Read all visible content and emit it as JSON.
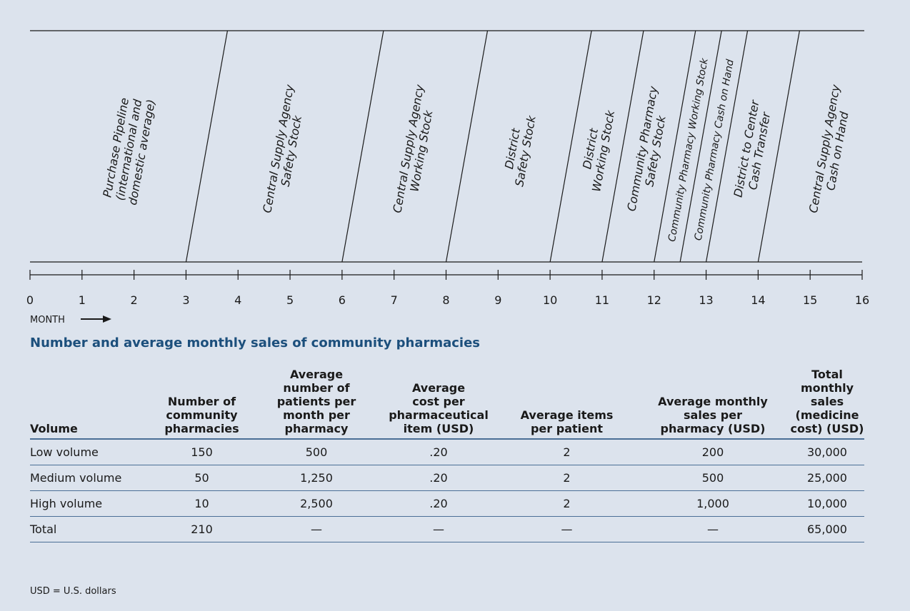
{
  "timeline": {
    "ticks": [
      0,
      1,
      2,
      3,
      4,
      5,
      6,
      7,
      8,
      9,
      10,
      11,
      12,
      13,
      14,
      15,
      16
    ],
    "axis_label": "MONTH",
    "segments": [
      {
        "from": 0,
        "to": 3,
        "lines": [
          "Purchase Pipeline",
          "(international and",
          "domestic average)"
        ]
      },
      {
        "from": 3,
        "to": 6,
        "lines": [
          "Central Supply Agency",
          "Safety Stock"
        ]
      },
      {
        "from": 6,
        "to": 8,
        "lines": [
          "Central Supply Agency",
          "Working Stock"
        ]
      },
      {
        "from": 8,
        "to": 10,
        "lines": [
          "District",
          "Safety Stock"
        ]
      },
      {
        "from": 10,
        "to": 11,
        "lines": [
          "District",
          "Working Stock"
        ]
      },
      {
        "from": 11,
        "to": 12,
        "lines": [
          "Community Pharmacy",
          "Safety Stock"
        ]
      },
      {
        "from": 12,
        "to": 12.5,
        "lines": [
          "Community Pharmacy Working Stock"
        ]
      },
      {
        "from": 12.5,
        "to": 13,
        "lines": [
          "Community Pharmacy Cash on Hand"
        ]
      },
      {
        "from": 13,
        "to": 14,
        "lines": [
          "District to Center",
          "Cash Transfer"
        ]
      },
      {
        "from": 14,
        "to": 16,
        "lines": [
          "Central Supply Agency",
          "Cash on Hand"
        ]
      }
    ]
  },
  "table": {
    "title": "Number and average monthly sales of community pharmacies",
    "columns": [
      [
        "Volume"
      ],
      [
        "Number of",
        "community",
        "pharmacies"
      ],
      [
        "Average",
        "number of",
        "patients per",
        "month per",
        "pharmacy"
      ],
      [
        "Average",
        "cost per",
        "pharmaceutical",
        "item (USD)"
      ],
      [
        "Average items",
        "per patient"
      ],
      [
        "Average monthly",
        "sales per",
        "pharmacy (USD)"
      ],
      [
        "Total monthly",
        "sales (medicine",
        "cost) (USD)"
      ]
    ],
    "rows": [
      [
        "Low volume",
        "150",
        "500",
        ".20",
        "2",
        "200",
        "30,000"
      ],
      [
        "Medium volume",
        "50",
        "1,250",
        ".20",
        "2",
        "500",
        "25,000"
      ],
      [
        "High volume",
        "10",
        "2,500",
        ".20",
        "2",
        "1,000",
        "10,000"
      ],
      [
        "Total",
        "210",
        "—",
        "—",
        "—",
        "—",
        "65,000"
      ]
    ],
    "footnote": "USD = U.S. dollars"
  }
}
